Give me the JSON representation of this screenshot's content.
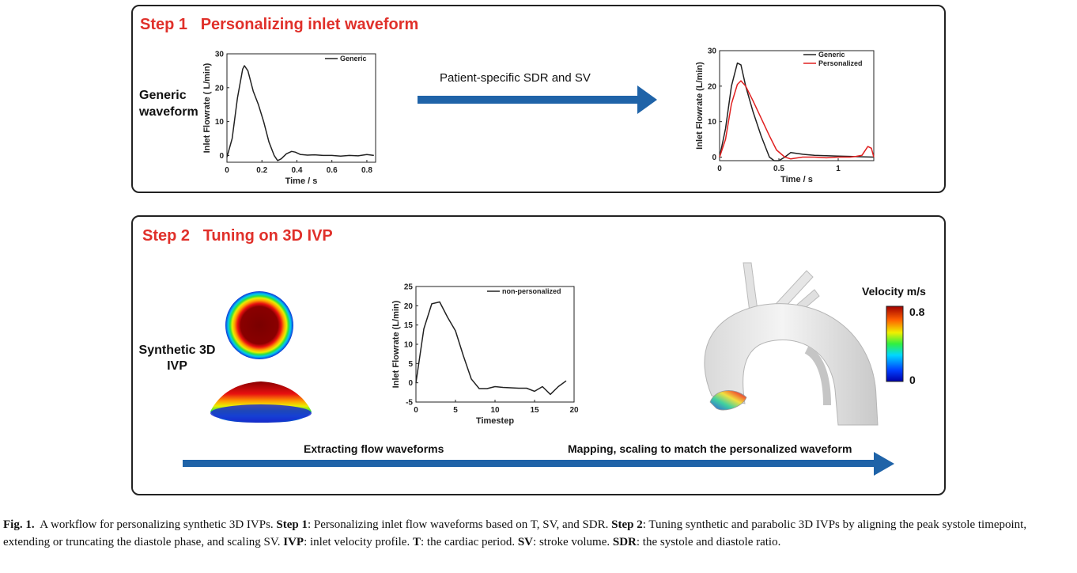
{
  "step1": {
    "title": "Step 1   Personalizing inlet waveform",
    "generic_label_line1": "Generic",
    "generic_label_line2": "waveform",
    "arrow_label": "Patient-specific SDR and SV"
  },
  "step2": {
    "title": "Step 2   Tuning on 3D IVP",
    "synthetic_label_line1": "Synthetic 3D",
    "synthetic_label_line2": "IVP",
    "arrow_label_left": "Extracting flow waveforms",
    "arrow_label_right": "Mapping, scaling to match the personalized waveform",
    "colorbar": {
      "title": "Velocity m/s",
      "max_label": "0.8",
      "min_label": "0"
    }
  },
  "chart_data": [
    {
      "type": "line",
      "xlabel": "Time / s",
      "ylabel": "Inlet Flowrate ( L/min)",
      "xlim": [
        0,
        0.85
      ],
      "ylim": [
        -2,
        30
      ],
      "xticks": [
        "0",
        "0.2",
        "0.4",
        "0.6",
        "0.8"
      ],
      "yticks": [
        "0",
        "10",
        "20",
        "30"
      ],
      "legend": "top-right",
      "series": [
        {
          "name": "Generic",
          "color": "#222222",
          "x": [
            0,
            0.03,
            0.06,
            0.09,
            0.1,
            0.12,
            0.15,
            0.18,
            0.21,
            0.24,
            0.27,
            0.29,
            0.31,
            0.34,
            0.37,
            0.39,
            0.42,
            0.46,
            0.5,
            0.55,
            0.6,
            0.65,
            0.7,
            0.75,
            0.8,
            0.84
          ],
          "y": [
            -0.5,
            5,
            17,
            25.5,
            26.5,
            25,
            19,
            15,
            10,
            4,
            0,
            -1.5,
            -1,
            0.5,
            1.2,
            1,
            0.3,
            0.1,
            0.2,
            0,
            0,
            -0.2,
            0,
            -0.1,
            0.3,
            0
          ]
        }
      ]
    },
    {
      "type": "line",
      "xlabel": "Time / s",
      "ylabel": "Inlet Flowrate (L/min)",
      "xlim": [
        0,
        1.3
      ],
      "ylim": [
        -1,
        30
      ],
      "xticks": [
        "0",
        "0.5",
        "1"
      ],
      "yticks": [
        "0",
        "10",
        "20",
        "30"
      ],
      "legend": "top-right",
      "series": [
        {
          "name": "Generic",
          "color": "#222222",
          "x": [
            0,
            0.05,
            0.1,
            0.15,
            0.18,
            0.22,
            0.28,
            0.35,
            0.42,
            0.46,
            0.5,
            0.55,
            0.6,
            0.7,
            0.8,
            0.9,
            1.0,
            1.1,
            1.2,
            1.3
          ],
          "y": [
            0,
            8,
            20,
            26.5,
            26,
            20,
            13,
            6,
            0,
            -1,
            -1,
            0,
            1.3,
            0.8,
            0.5,
            0.4,
            0.3,
            0.2,
            0.1,
            0
          ]
        },
        {
          "name": "Personalized",
          "color": "#e02020",
          "x": [
            0,
            0.05,
            0.1,
            0.15,
            0.18,
            0.22,
            0.28,
            0.35,
            0.42,
            0.48,
            0.55,
            0.6,
            0.7,
            0.8,
            0.9,
            1.0,
            1.1,
            1.15,
            1.2,
            1.25,
            1.28,
            1.3
          ],
          "y": [
            0,
            5,
            15,
            20.5,
            21.5,
            20,
            16,
            11,
            6,
            2,
            0,
            -0.5,
            0,
            0,
            -0.2,
            0,
            0,
            0.2,
            0.5,
            3,
            2.5,
            0
          ]
        }
      ]
    },
    {
      "type": "line",
      "xlabel": "Timestep",
      "ylabel": "Inlet Flowrate (L/min)",
      "xlim": [
        0,
        20
      ],
      "ylim": [
        -5,
        25
      ],
      "xticks": [
        "0",
        "5",
        "10",
        "15",
        "20"
      ],
      "yticks": [
        "-5",
        "0",
        "5",
        "10",
        "15",
        "20",
        "25"
      ],
      "legend": "top-right",
      "series": [
        {
          "name": "non-personalized",
          "color": "#222222",
          "x": [
            0,
            1,
            2,
            3,
            4,
            5,
            6,
            7,
            8,
            9,
            10,
            11,
            12,
            13,
            14,
            15,
            16,
            17,
            18,
            19
          ],
          "y": [
            0,
            14,
            20.5,
            21,
            17,
            13.5,
            7,
            1,
            -1.5,
            -1.5,
            -1,
            -1.2,
            -1.3,
            -1.4,
            -1.4,
            -2.2,
            -1,
            -3,
            -1,
            0.5
          ]
        }
      ]
    }
  ],
  "caption": {
    "fig": "Fig. 1.",
    "intro": "A workflow for personalizing synthetic 3D IVPs.",
    "s1_bold": "Step 1",
    "s1_text": ": Personalizing inlet flow waveforms based on T, SV, and SDR.",
    "s2_bold": "Step 2",
    "s2_text": ": Tuning synthetic and parabolic 3D IVPs by aligning the peak systole timepoint, extending or truncating the diastole phase, and scaling SV.",
    "ivp_bold": "IVP",
    "ivp_text": ": inlet velocity profile.",
    "t_bold": "T",
    "t_text": ": the cardiac period.",
    "sv_bold": "SV",
    "sv_text": ": stroke volume.",
    "sdr_bold": "SDR",
    "sdr_text": ": the systole and diastole ratio."
  }
}
